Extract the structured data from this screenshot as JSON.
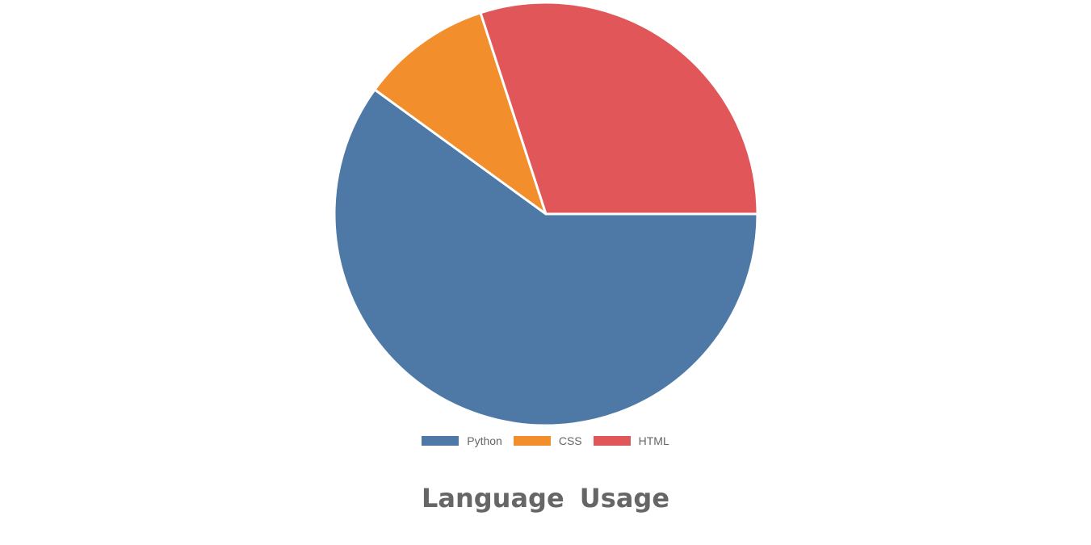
{
  "chart_data": {
    "type": "pie",
    "title": "Language Usage",
    "categories": [
      "Python",
      "CSS",
      "HTML"
    ],
    "values": [
      60,
      10,
      30
    ],
    "colors": [
      "#4e78a5",
      "#f28e2c",
      "#e15759"
    ],
    "legend_placement": "bottom"
  }
}
